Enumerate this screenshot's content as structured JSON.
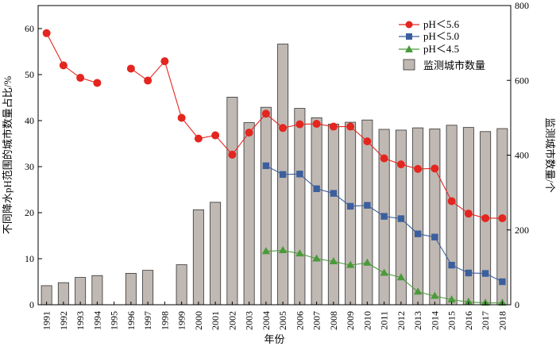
{
  "chart_data": {
    "type": "bar+line",
    "categories": [
      "1991",
      "1992",
      "1993",
      "1994",
      "1995",
      "1996",
      "1997",
      "1998",
      "1999",
      "2000",
      "2001",
      "2002",
      "2003",
      "2004",
      "2005",
      "2006",
      "2007",
      "2008",
      "2009",
      "2010",
      "2011",
      "2012",
      "2013",
      "2014",
      "2015",
      "2016",
      "2017",
      "2018"
    ],
    "xlabel": "年份",
    "ylabel_left": "不同降水pH范围的城市数量占比/%",
    "ylabel_right": "监测城市数量/个",
    "ylim_left": [
      0,
      65
    ],
    "ylim_right": [
      0,
      800
    ],
    "yticks_left": [
      0,
      10,
      20,
      30,
      40,
      50,
      60
    ],
    "yticks_right": [
      0,
      200,
      400,
      600,
      800
    ],
    "bars": {
      "name": "监测城市数量",
      "axis": "right",
      "color": "#c0b8b3",
      "values": [
        51,
        59,
        73,
        78,
        null,
        84,
        92,
        null,
        107,
        254,
        274,
        555,
        487,
        528,
        697,
        525,
        500,
        483,
        488,
        494,
        469,
        467,
        473,
        470,
        480,
        474,
        463,
        471
      ]
    },
    "series": [
      {
        "name": "pH＜5.6",
        "axis": "left",
        "color": "#e3261f",
        "marker": "circle",
        "values": [
          59,
          52,
          49.3,
          48.2,
          null,
          51.3,
          48.7,
          52.9,
          40.6,
          36.1,
          36.8,
          32.6,
          37.4,
          41.5,
          38.4,
          39.2,
          39.3,
          38.7,
          38.7,
          35.5,
          31.8,
          30.5,
          29.5,
          29.6,
          22.5,
          19.8,
          18.8,
          18.8
        ]
      },
      {
        "name": "pH＜5.0",
        "axis": "left",
        "color": "#3b5f9e",
        "marker": "square",
        "values": [
          null,
          null,
          null,
          null,
          null,
          null,
          null,
          null,
          null,
          null,
          null,
          null,
          null,
          30.2,
          28.3,
          28.4,
          25.2,
          24.2,
          21.4,
          21.6,
          19.2,
          18.7,
          15.4,
          14.7,
          8.6,
          6.9,
          6.8,
          5.0
        ]
      },
      {
        "name": "pH＜4.5",
        "axis": "left",
        "color": "#4a9a3a",
        "marker": "triangle",
        "values": [
          null,
          null,
          null,
          null,
          null,
          null,
          null,
          null,
          null,
          null,
          null,
          null,
          null,
          11.6,
          11.8,
          11.1,
          10.0,
          9.4,
          8.6,
          9.1,
          6.9,
          5.9,
          2.8,
          1.9,
          1.1,
          0.6,
          0.4,
          0.4
        ]
      }
    ],
    "legend_position": "top-right"
  }
}
